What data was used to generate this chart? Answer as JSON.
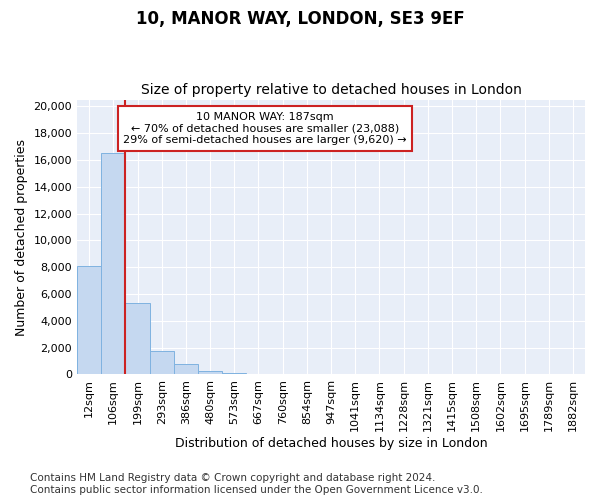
{
  "title1": "10, MANOR WAY, LONDON, SE3 9EF",
  "title2": "Size of property relative to detached houses in London",
  "xlabel": "Distribution of detached houses by size in London",
  "ylabel": "Number of detached properties",
  "bar_heights": [
    8100,
    16500,
    5300,
    1750,
    750,
    280,
    130,
    50,
    0,
    0,
    0,
    0,
    0,
    0,
    0,
    0,
    0,
    0,
    0,
    0,
    0
  ],
  "categories": [
    "12sqm",
    "106sqm",
    "199sqm",
    "293sqm",
    "386sqm",
    "480sqm",
    "573sqm",
    "667sqm",
    "760sqm",
    "854sqm",
    "947sqm",
    "1041sqm",
    "1134sqm",
    "1228sqm",
    "1321sqm",
    "1415sqm",
    "1508sqm",
    "1602sqm",
    "1695sqm",
    "1789sqm",
    "1882sqm"
  ],
  "bar_color": "#c5d8f0",
  "bar_edge_color": "#7fb2e0",
  "vline_color": "#cc2222",
  "annotation_text": "10 MANOR WAY: 187sqm\n← 70% of detached houses are smaller (23,088)\n29% of semi-detached houses are larger (9,620) →",
  "annotation_box_color": "white",
  "annotation_box_edge": "#cc2222",
  "ylim_max": 20500,
  "yticks": [
    0,
    2000,
    4000,
    6000,
    8000,
    10000,
    12000,
    14000,
    16000,
    18000,
    20000
  ],
  "footnote": "Contains HM Land Registry data © Crown copyright and database right 2024.\nContains public sector information licensed under the Open Government Licence v3.0.",
  "bg_color": "#e8eef8",
  "grid_color": "#ffffff",
  "title1_fontsize": 12,
  "title2_fontsize": 10,
  "xlabel_fontsize": 9,
  "ylabel_fontsize": 9,
  "tick_fontsize": 8,
  "annot_fontsize": 8,
  "footnote_fontsize": 7.5
}
